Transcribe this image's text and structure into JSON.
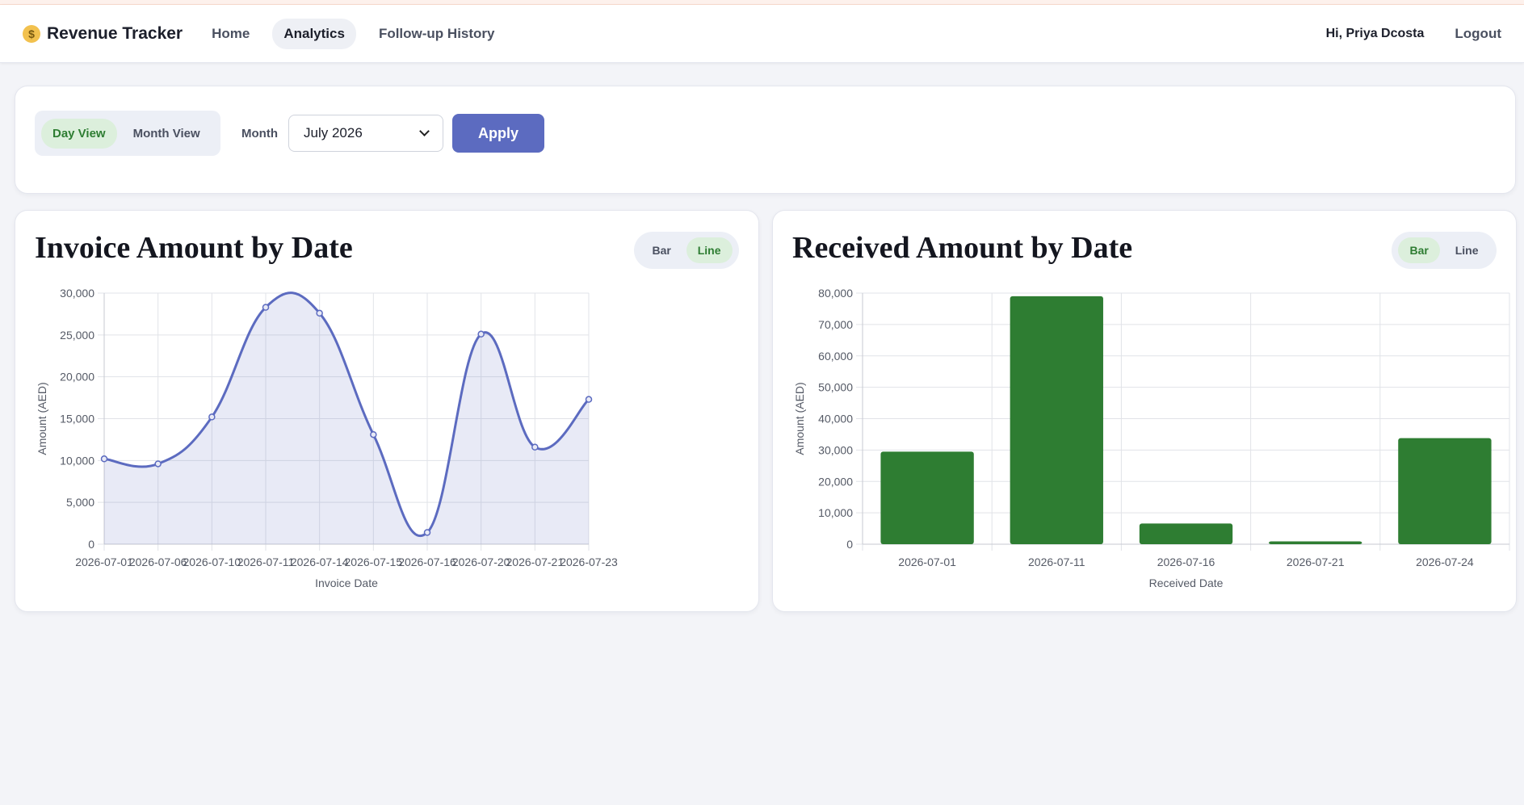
{
  "nav": {
    "brand_icon": "money-bag-icon",
    "brand_glyph": "$",
    "brand": "Revenue Tracker",
    "links": [
      "Home",
      "Analytics",
      "Follow-up History"
    ],
    "active_link": "Analytics",
    "greeting": "Hi, Priya Dcosta",
    "logout": "Logout"
  },
  "filters": {
    "views": [
      "Day View",
      "Month View"
    ],
    "active_view": "Day View",
    "month_label": "Month",
    "month_value": "July 2026",
    "apply_label": "Apply"
  },
  "charts": {
    "invoice": {
      "title": "Invoice Amount by Date",
      "types": [
        "Bar",
        "Line"
      ],
      "active_type": "Line"
    },
    "received": {
      "title": "Received Amount by Date",
      "types": [
        "Bar",
        "Line"
      ],
      "active_type": "Bar"
    }
  },
  "chart_data": [
    {
      "type": "line",
      "title": "Invoice Amount by Date",
      "xlabel": "Invoice Date",
      "ylabel": "Amount (AED)",
      "categories": [
        "2026-07-01",
        "2026-07-06",
        "2026-07-10",
        "2026-07-11",
        "2026-07-14",
        "2026-07-15",
        "2026-07-16",
        "2026-07-20",
        "2026-07-21",
        "2026-07-23"
      ],
      "values": [
        10200,
        9600,
        15200,
        28300,
        27600,
        13100,
        1400,
        25100,
        11600,
        17300
      ],
      "ylim": [
        0,
        30000
      ],
      "yticks": [
        0,
        5000,
        10000,
        15000,
        20000,
        25000,
        30000
      ],
      "grid": true,
      "color": "#5c6bc0",
      "fill": "rgba(92,107,192,0.14)"
    },
    {
      "type": "bar",
      "title": "Received Amount by Date",
      "xlabel": "Received Date",
      "ylabel": "Amount (AED)",
      "categories": [
        "2026-07-01",
        "2026-07-11",
        "2026-07-16",
        "2026-07-21",
        "2026-07-24"
      ],
      "values": [
        29500,
        79000,
        6600,
        900,
        33800
      ],
      "ylim": [
        0,
        80000
      ],
      "yticks": [
        0,
        10000,
        20000,
        30000,
        40000,
        50000,
        60000,
        70000,
        80000
      ],
      "grid": true,
      "color": "#2e7d32"
    }
  ]
}
